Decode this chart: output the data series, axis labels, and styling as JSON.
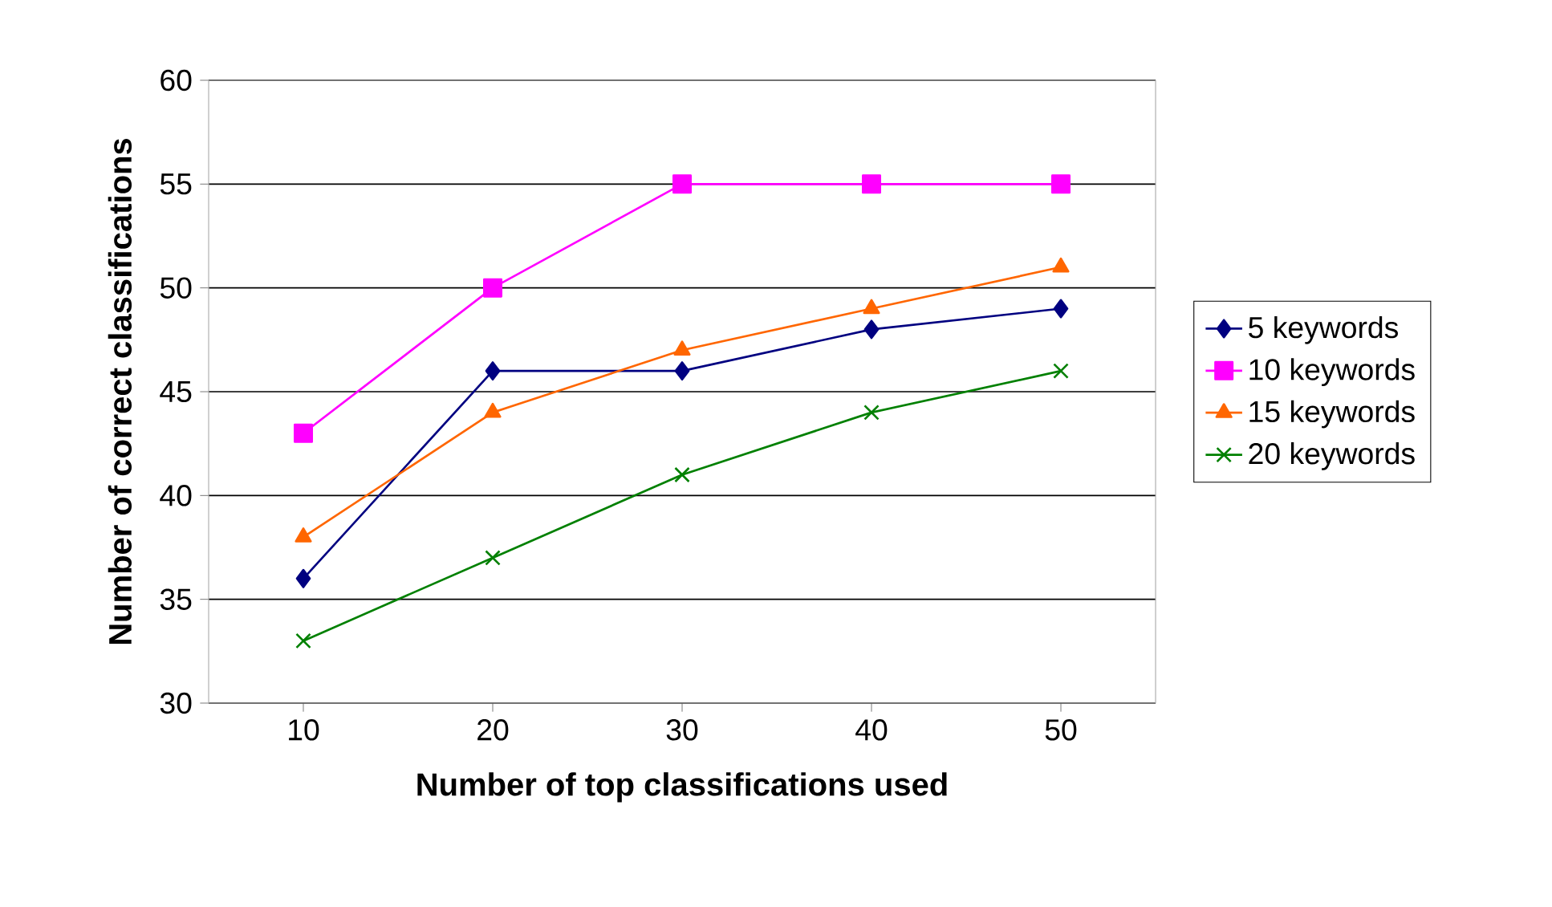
{
  "chart_data": {
    "type": "line",
    "xlabel": "Number of top classifications used",
    "ylabel": "Number of correct classifications",
    "categories": [
      "10",
      "20",
      "30",
      "40",
      "50"
    ],
    "series": [
      {
        "name": "5 keywords",
        "color": "#000080",
        "marker": "diamond",
        "values": [
          36,
          46,
          46,
          48,
          49
        ]
      },
      {
        "name": "10 keywords",
        "color": "#ff00ff",
        "marker": "square",
        "values": [
          43,
          50,
          55,
          55,
          55
        ]
      },
      {
        "name": "15 keywords",
        "color": "#ff6600",
        "marker": "triangle",
        "values": [
          38,
          44,
          47,
          49,
          51
        ]
      },
      {
        "name": "20 keywords",
        "color": "#008000",
        "marker": "cross",
        "values": [
          33,
          37,
          41,
          44,
          46
        ]
      }
    ],
    "ylim": [
      30,
      60
    ],
    "yticks": [
      30,
      35,
      40,
      45,
      50,
      55,
      60
    ],
    "grid": "y",
    "legend": "right"
  }
}
